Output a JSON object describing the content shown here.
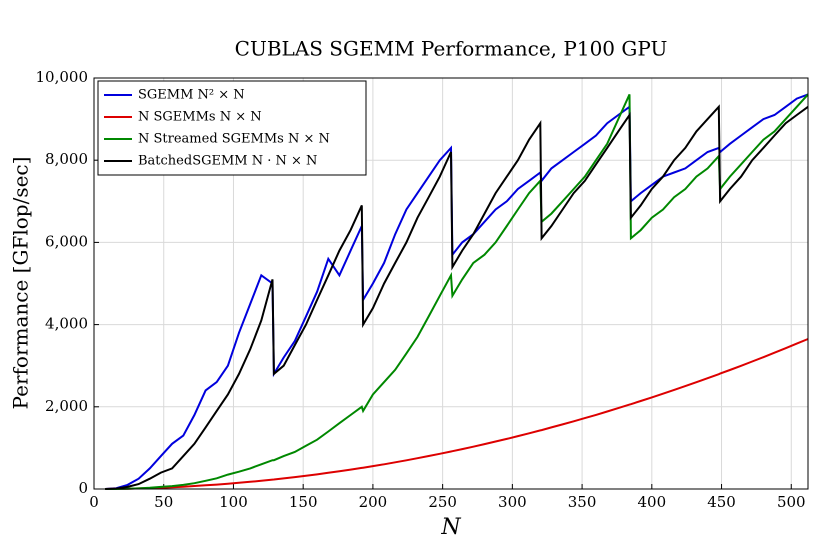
{
  "chart_data": {
    "type": "line",
    "title": "CUBLAS SGEMM Performance, P100 GPU",
    "x_label": "N",
    "y_label": "Performance [GFlop/sec]",
    "xlim": [
      0,
      512
    ],
    "ylim": [
      0,
      10000
    ],
    "xticks": [
      0,
      50,
      100,
      150,
      200,
      250,
      300,
      350,
      400,
      450,
      500
    ],
    "yticks": [
      0,
      {
        "value": 2000,
        "label": "2,000"
      },
      {
        "value": 4000,
        "label": "4,000"
      },
      {
        "value": 6000,
        "label": "6,000"
      },
      {
        "value": 8000,
        "label": "8,000"
      },
      {
        "value": 10000,
        "label": "10,000"
      }
    ],
    "grid": true,
    "legend": "upper left",
    "x": [
      8,
      16,
      24,
      32,
      40,
      48,
      56,
      64,
      72,
      80,
      88,
      96,
      104,
      112,
      120,
      128,
      129,
      136,
      144,
      152,
      160,
      168,
      176,
      184,
      192,
      193,
      200,
      208,
      216,
      224,
      232,
      240,
      248,
      256,
      257,
      264,
      272,
      280,
      288,
      296,
      304,
      312,
      320,
      321,
      328,
      336,
      344,
      352,
      360,
      368,
      376,
      384,
      385,
      392,
      400,
      408,
      416,
      424,
      432,
      440,
      448,
      449,
      456,
      464,
      472,
      480,
      488,
      496,
      504,
      512
    ],
    "series": [
      {
        "name": "SGEMM N² × N",
        "color": "#0000dd",
        "values": [
          0,
          20,
          100,
          250,
          500,
          800,
          1100,
          1300,
          1800,
          2400,
          2600,
          3000,
          3800,
          4500,
          5200,
          5000,
          2800,
          3200,
          3600,
          4200,
          4800,
          5600,
          5200,
          5800,
          6400,
          4600,
          5000,
          5500,
          6200,
          6800,
          7200,
          7600,
          8000,
          8300,
          5700,
          6000,
          6200,
          6500,
          6800,
          7000,
          7300,
          7500,
          7700,
          7500,
          7800,
          8000,
          8200,
          8400,
          8600,
          8900,
          9100,
          9300,
          7000,
          7200,
          7400,
          7600,
          7700,
          7800,
          8000,
          8200,
          8300,
          8200,
          8400,
          8600,
          8800,
          9000,
          9100,
          9300,
          9500,
          9600
        ]
      },
      {
        "name": "N SGEMMs N × N",
        "color": "#dd0000",
        "values": [
          1,
          4,
          8,
          14,
          22,
          32,
          44,
          57,
          72,
          89,
          108,
          128,
          151,
          175,
          200,
          228,
          232,
          258,
          289,
          322,
          356,
          393,
          431,
          471,
          513,
          518,
          557,
          602,
          650,
          699,
          749,
          802,
          856,
          912,
          919,
          970,
          1030,
          1092,
          1155,
          1219,
          1287,
          1356,
          1426,
          1434,
          1498,
          1572,
          1648,
          1725,
          1804,
          1886,
          1968,
          2053,
          2063,
          2140,
          2228,
          2318,
          2410,
          2503,
          2598,
          2696,
          2794,
          2807,
          2896,
          2998,
          3102,
          3208,
          3316,
          3425,
          3537,
          3650
        ]
      },
      {
        "name": "N Streamed SGEMMs N × N",
        "color": "#008800",
        "values": [
          0,
          0,
          5,
          15,
          30,
          50,
          70,
          100,
          140,
          200,
          260,
          350,
          420,
          500,
          600,
          700,
          700,
          800,
          900,
          1050,
          1200,
          1400,
          1600,
          1800,
          2000,
          1900,
          2300,
          2600,
          2900,
          3300,
          3700,
          4200,
          4700,
          5200,
          4700,
          5100,
          5500,
          5700,
          6000,
          6400,
          6800,
          7200,
          7500,
          6500,
          6700,
          7000,
          7300,
          7600,
          8000,
          8400,
          9000,
          9600,
          6100,
          6300,
          6600,
          6800,
          7100,
          7300,
          7600,
          7800,
          8100,
          7300,
          7600,
          7900,
          8200,
          8500,
          8700,
          9000,
          9300,
          9600
        ]
      },
      {
        "name": "BatchedSGEMM N · N × N",
        "color": "#000000",
        "values": [
          0,
          10,
          50,
          120,
          250,
          400,
          500,
          800,
          1100,
          1500,
          1900,
          2300,
          2800,
          3400,
          4100,
          5100,
          2800,
          3000,
          3500,
          4000,
          4600,
          5200,
          5800,
          6300,
          6900,
          4000,
          4400,
          5000,
          5500,
          6000,
          6600,
          7100,
          7600,
          8200,
          5400,
          5800,
          6200,
          6700,
          7200,
          7600,
          8000,
          8500,
          8900,
          6100,
          6400,
          6800,
          7200,
          7500,
          7900,
          8300,
          8700,
          9100,
          6600,
          6900,
          7300,
          7600,
          8000,
          8300,
          8700,
          9000,
          9300,
          7000,
          7300,
          7600,
          8000,
          8300,
          8600,
          8900,
          9100,
          9300
        ]
      }
    ]
  }
}
